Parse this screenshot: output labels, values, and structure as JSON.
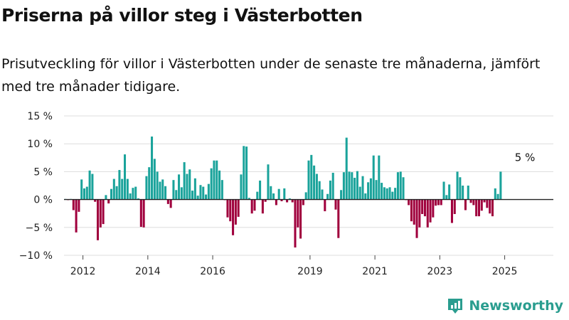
{
  "chart_data": {
    "type": "bar",
    "title": "Priserna på villor steg i Västerbotten",
    "subtitle": "Prisutveckling för villor i Västerbotten under de senaste tre månaderna, jämfört med tre månader tidigare.",
    "xlabel": "",
    "ylabel": "",
    "ylim": [
      -10,
      15
    ],
    "y_ticks": [
      15,
      10,
      5,
      0,
      -5,
      -10
    ],
    "y_tick_labels": [
      "15 %",
      "10 %",
      "5 %",
      "0 %",
      "−5 %",
      "−10 %"
    ],
    "x_range": [
      "2011-06",
      "2026-07"
    ],
    "x_ticks": [
      "2012-01",
      "2014-01",
      "2016-01",
      "2019-01",
      "2021-01",
      "2023-01",
      "2025-01"
    ],
    "x_tick_labels": [
      "2012",
      "2014",
      "2016",
      "2019",
      "2021",
      "2023",
      "2025"
    ],
    "grid": true,
    "positive_color": "#1aa39b",
    "negative_color": "#a0003d",
    "annotations": [
      {
        "x": "2025-08",
        "y": 5,
        "text": "5 %"
      }
    ],
    "start_month": "2011-06",
    "values": [
      0.1,
      -0.1,
      0.1,
      -1.9,
      -5.9,
      -2.2,
      3.6,
      2.0,
      2.3,
      5.2,
      4.6,
      -0.4,
      -7.3,
      -5.0,
      -4.4,
      0.8,
      -0.7,
      1.9,
      3.7,
      2.4,
      5.3,
      3.7,
      8.1,
      3.7,
      1.1,
      2.1,
      2.3,
      0.2,
      -4.9,
      -5.0,
      4.2,
      5.8,
      11.3,
      7.3,
      5.0,
      3.2,
      3.6,
      2.4,
      -0.8,
      -1.5,
      3.5,
      1.7,
      4.5,
      2.2,
      6.7,
      4.6,
      5.4,
      1.6,
      3.8,
      0.7,
      2.6,
      2.3,
      0.9,
      2.8,
      5.6,
      7.0,
      7.0,
      5.2,
      3.5,
      -0.1,
      -3.2,
      -3.9,
      -6.4,
      -4.5,
      -3.1,
      4.5,
      9.6,
      9.5,
      0.3,
      -2.5,
      -2.0,
      1.4,
      3.4,
      -2.5,
      -0.4,
      6.3,
      2.4,
      1.1,
      -1.0,
      1.9,
      -0.3,
      2.0,
      -0.5,
      0.2,
      -0.5,
      -8.6,
      -5.0,
      -7.0,
      -1.0,
      1.3,
      7.0,
      8.0,
      6.1,
      4.6,
      3.3,
      1.8,
      -2.1,
      1.0,
      3.4,
      4.8,
      -1.8,
      -6.9,
      1.7,
      4.9,
      11.1,
      5.0,
      4.9,
      3.9,
      5.1,
      2.3,
      4.2,
      1.1,
      3.1,
      3.8,
      7.9,
      3.5,
      7.9,
      3.0,
      2.2,
      2.0,
      2.2,
      1.4,
      2.1,
      4.9,
      5.0,
      4.0,
      -0.1,
      -1.0,
      -3.9,
      -4.5,
      -6.9,
      -5.0,
      -2.6,
      -3.0,
      -5.0,
      -4.1,
      -3.2,
      -1.1,
      -1.0,
      -1.0,
      3.2,
      0.8,
      2.7,
      -4.2,
      -2.6,
      5.0,
      4.0,
      2.5,
      -1.9,
      2.5,
      -0.6,
      -1.0,
      -3.0,
      -3.0,
      -2.0,
      -0.5,
      -1.5,
      -2.5,
      -3.0,
      2.0,
      1.0,
      5.0
    ]
  },
  "brand": {
    "name": "Newsworthy",
    "logo_icon": "newsworthy-logo-icon"
  }
}
